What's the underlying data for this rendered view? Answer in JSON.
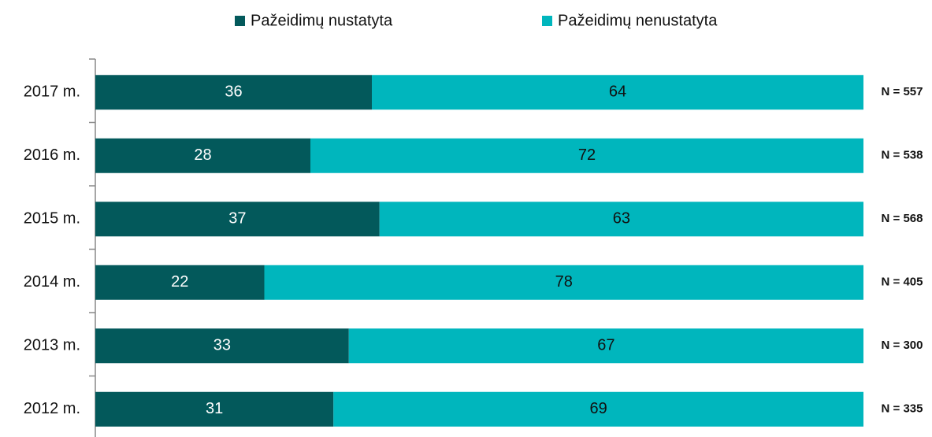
{
  "chart_data": {
    "type": "stacked_barh",
    "categories": [
      "2017 m.",
      "2016 m.",
      "2015 m.",
      "2014 m.",
      "2013 m.",
      "2012 m."
    ],
    "series": [
      {
        "name": "Pažeidimų nustatyta",
        "color": "#03595b",
        "label_color": "#ffffff",
        "values": [
          36,
          28,
          37,
          22,
          33,
          31
        ]
      },
      {
        "name": "Pažeidimų nenustatyta",
        "color": "#00b6bd",
        "label_color": "#111111",
        "values": [
          64,
          72,
          63,
          78,
          67,
          69
        ]
      }
    ],
    "annotations": [
      "N = 557",
      "N = 538",
      "N = 568",
      "N = 405",
      "N = 300",
      "N = 335"
    ],
    "xlim": [
      0,
      100
    ],
    "legend": "top"
  }
}
